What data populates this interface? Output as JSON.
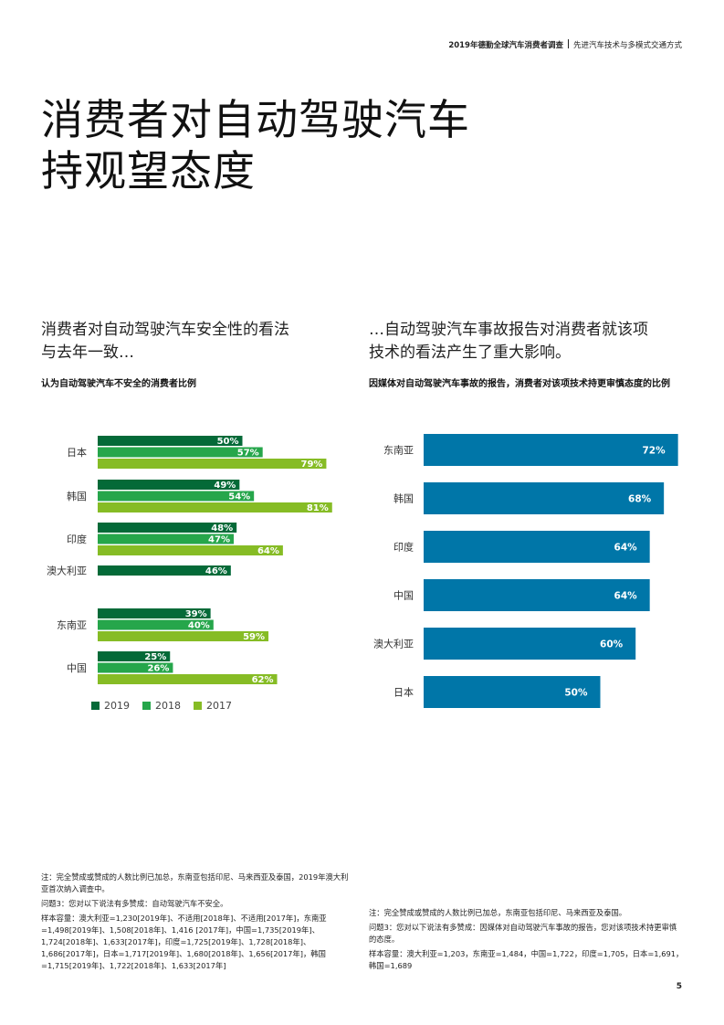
{
  "header": {
    "title": "2019年德勤全球汽车消费者调查",
    "subtitle": "先进汽车技术与多模式交通方式"
  },
  "title": {
    "line1": "消费者对自动驾驶汽车",
    "line2": "持观望态度"
  },
  "left": {
    "subhead_line1": "消费者对自动驾驶汽车安全性的看法",
    "subhead_line2": "与去年一致…",
    "caption": "认为自动驾驶汽车不安全的消费者比例"
  },
  "right": {
    "subhead_line1": "…自动驾驶汽车事故报告对消费者就该项",
    "subhead_line2": "技术的看法产生了重大影响。",
    "caption": "因媒体对自动驾驶汽车事故的报告，消费者对该项技术持更审慎态度的比例"
  },
  "colors": {
    "y2019": "#046a38",
    "y2018": "#26a64b",
    "y2017": "#86bc25",
    "blue": "#0076a8"
  },
  "chart_data": [
    {
      "type": "bar",
      "orientation": "horizontal",
      "title": "认为自动驾驶汽车不安全的消费者比例",
      "categories": [
        "日本",
        "韩国",
        "印度",
        "澳大利亚",
        "东南亚",
        "中国"
      ],
      "series": [
        {
          "name": "2019",
          "values": [
            50,
            49,
            48,
            46,
            39,
            25
          ],
          "labels": [
            "50%",
            "49%",
            "48%",
            "46%",
            "39%",
            "25%"
          ]
        },
        {
          "name": "2018",
          "values": [
            57,
            54,
            47,
            null,
            40,
            26
          ],
          "labels": [
            "57%",
            "54%",
            "47%",
            "",
            "40%",
            "26%"
          ]
        },
        {
          "name": "2017",
          "values": [
            79,
            81,
            64,
            null,
            59,
            62
          ],
          "labels": [
            "79%",
            "81%",
            "64%",
            "",
            "59%",
            "62%"
          ]
        }
      ],
      "legend": [
        "2019",
        "2018",
        "2017"
      ],
      "legend_position": "bottom-left",
      "grid": false
    },
    {
      "type": "bar",
      "orientation": "horizontal",
      "title": "因媒体对自动驾驶汽车事故的报告，消费者对该项技术持更审慎态度的比例",
      "categories": [
        "东南亚",
        "韩国",
        "印度",
        "中国",
        "澳大利亚",
        "日本"
      ],
      "values": [
        72,
        68,
        64,
        64,
        60,
        50
      ],
      "labels": [
        "72%",
        "68%",
        "64%",
        "64%",
        "60%",
        "50%"
      ],
      "grid": false
    }
  ],
  "notes_left": [
    "注：完全赞成或赞成的人数比例已加总，东南亚包括印尼、马来西亚及泰国，2019年澳大利亚首次纳入调查中。",
    "问题3：您对以下说法有多赞成：自动驾驶汽车不安全。",
    "样本容量：澳大利亚=1,230[2019年]、不适用[2018年]、不适用[2017年]，东南亚=1,498[2019年]、1,508[2018年]、1,416 [2017年]，中国=1,735[2019年]、1,724[2018年]、1,633[2017年]，印度=1,725[2019年]、1,728[2018年]、1,686[2017年]，日本=1,717[2019年]、1,680[2018年]、1,656[2017年]，韩国=1,715[2019年]、1,722[2018年]、1,633[2017年]"
  ],
  "notes_right": [
    "注：完全赞成或赞成的人数比例已加总，东南亚包括印尼、马来西亚及泰国。",
    "问题3：您对以下说法有多赞成：因媒体对自动驾驶汽车事故的报告，您对该项技术持更审慎的态度。",
    "样本容量：澳大利亚=1,203，东南亚=1,484，中国=1,722，印度=1,705，日本=1,691，韩国=1,689"
  ],
  "page_number": "5"
}
